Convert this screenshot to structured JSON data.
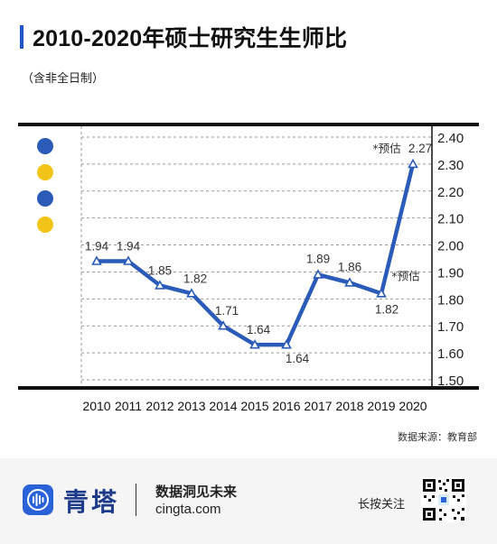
{
  "header": {
    "title": "2010-2020年硕士研究生生师比",
    "subtitle": "（含非全日制）"
  },
  "chart_data": {
    "type": "line",
    "categories": [
      "2010",
      "2011",
      "2012",
      "2013",
      "2014",
      "2015",
      "2016",
      "2017",
      "2018",
      "2019",
      "2020"
    ],
    "values": [
      1.94,
      1.94,
      1.85,
      1.82,
      1.71,
      1.64,
      1.64,
      1.89,
      1.86,
      1.82,
      2.27
    ],
    "plotted_values": [
      1.94,
      1.94,
      1.85,
      1.82,
      1.7,
      1.63,
      1.63,
      1.89,
      1.86,
      1.82,
      2.3
    ],
    "data_labels": [
      "1.94",
      "1.94",
      "1.85",
      "1.82",
      "1.71",
      "1.64",
      "1.64",
      "1.89",
      "1.86",
      "1.82",
      "2.27"
    ],
    "annotations": [
      "*预估",
      "*预估"
    ],
    "y_ticks": [
      "1.50",
      "1.60",
      "1.70",
      "1.80",
      "1.90",
      "2.00",
      "2.10",
      "2.20",
      "2.30",
      "2.40"
    ],
    "ylim": [
      1.5,
      2.4
    ],
    "y_axis_side": "right",
    "grid": true,
    "line_color": "#2a5bb8",
    "legend_dot_colors": [
      "#2a5bb8",
      "#f2c417",
      "#2a5bb8",
      "#f2c417"
    ],
    "title": "2010-2020年硕士研究生生师比",
    "xlabel": "",
    "ylabel": ""
  },
  "source": {
    "text": "数据来源：教育部"
  },
  "footer": {
    "logo_text": "青塔",
    "slogan": "数据洞见未来",
    "site": "cingta.com",
    "follow": "长按关注",
    "logo_icon": "sound-wave-icon",
    "qr_icon": "qr-code-icon",
    "brand_color": "#2a63d8"
  }
}
